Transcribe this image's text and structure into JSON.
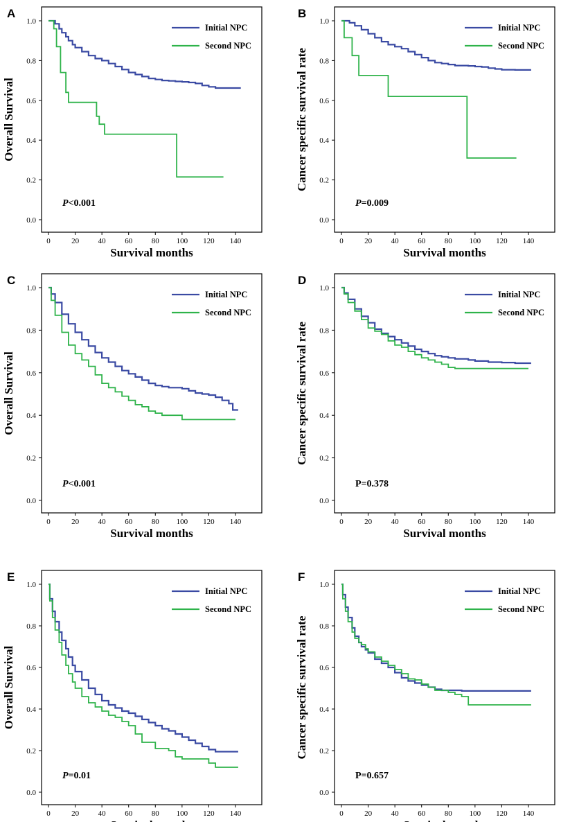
{
  "colors": {
    "initial": "#3a4aa3",
    "second": "#2eb34a",
    "axis": "#000000"
  },
  "chart_data": [
    {
      "panel": "A",
      "type": "line",
      "xlabel": "Survival months",
      "ylabel": "Overall Survival",
      "xlim": [
        0,
        140
      ],
      "ylim": [
        0,
        1
      ],
      "xticks": [
        "0",
        "20",
        "40",
        "60",
        "80",
        "100",
        "120",
        "140"
      ],
      "yticks": [
        "0.0",
        "0.2",
        "0.4",
        "0.6",
        "0.8",
        "1.0"
      ],
      "p_prefix": "P",
      "p_suffix": "<0.001",
      "p_italic": true,
      "series": [
        {
          "name": "Initial NPC",
          "color": "#3a4aa3",
          "step": true,
          "x": [
            0,
            3,
            5,
            8,
            10,
            13,
            15,
            18,
            20,
            25,
            30,
            35,
            40,
            45,
            50,
            55,
            60,
            65,
            70,
            75,
            80,
            85,
            90,
            95,
            100,
            105,
            110,
            115,
            120,
            125,
            130,
            135,
            140,
            144
          ],
          "y": [
            1.0,
            1.0,
            0.985,
            0.96,
            0.94,
            0.92,
            0.9,
            0.88,
            0.865,
            0.845,
            0.825,
            0.81,
            0.8,
            0.785,
            0.77,
            0.755,
            0.74,
            0.73,
            0.72,
            0.71,
            0.705,
            0.7,
            0.698,
            0.695,
            0.693,
            0.69,
            0.685,
            0.675,
            0.668,
            0.662,
            0.662,
            0.662,
            0.662,
            0.662
          ]
        },
        {
          "name": "Second NPC",
          "color": "#2eb34a",
          "step": true,
          "x": [
            0,
            4,
            6,
            9,
            13,
            15,
            36,
            38,
            42,
            94,
            96,
            131
          ],
          "y": [
            1.0,
            0.96,
            0.87,
            0.74,
            0.64,
            0.59,
            0.52,
            0.48,
            0.43,
            0.43,
            0.215,
            0.215
          ]
        }
      ]
    },
    {
      "panel": "B",
      "type": "line",
      "xlabel": "Survival months",
      "ylabel": "Cancer specific survival rate",
      "xlim": [
        0,
        140
      ],
      "ylim": [
        0,
        1
      ],
      "xticks": [
        "0",
        "20",
        "40",
        "60",
        "80",
        "100",
        "120",
        "140"
      ],
      "yticks": [
        "0.0",
        "0.2",
        "0.4",
        "0.6",
        "0.8",
        "1.0"
      ],
      "p_prefix": "P",
      "p_suffix": "=0.009",
      "p_italic": true,
      "series": [
        {
          "name": "Initial NPC",
          "color": "#3a4aa3",
          "step": true,
          "x": [
            0,
            3,
            6,
            10,
            15,
            20,
            25,
            30,
            35,
            40,
            45,
            50,
            55,
            60,
            65,
            70,
            75,
            80,
            85,
            90,
            95,
            100,
            105,
            110,
            115,
            120,
            130,
            140,
            142
          ],
          "y": [
            1.0,
            1.0,
            0.99,
            0.975,
            0.955,
            0.935,
            0.915,
            0.895,
            0.88,
            0.87,
            0.86,
            0.845,
            0.83,
            0.815,
            0.8,
            0.79,
            0.785,
            0.78,
            0.775,
            0.775,
            0.773,
            0.77,
            0.768,
            0.762,
            0.758,
            0.754,
            0.753,
            0.753,
            0.753
          ]
        },
        {
          "name": "Second NPC",
          "color": "#2eb34a",
          "step": true,
          "x": [
            0,
            2,
            8,
            13,
            35,
            94,
            131
          ],
          "y": [
            1.0,
            0.915,
            0.825,
            0.725,
            0.62,
            0.31,
            0.31
          ]
        }
      ]
    },
    {
      "panel": "C",
      "type": "line",
      "xlabel": "Survival months",
      "ylabel": "Overall Survival",
      "xlim": [
        0,
        140
      ],
      "ylim": [
        0,
        1
      ],
      "xticks": [
        "0",
        "20",
        "40",
        "60",
        "80",
        "100",
        "120",
        "140"
      ],
      "yticks": [
        "0.0",
        "0.2",
        "0.4",
        "0.6",
        "0.8",
        "1.0"
      ],
      "p_prefix": "P",
      "p_suffix": "<0.001",
      "p_italic": true,
      "series": [
        {
          "name": "Initial NPC",
          "color": "#3a4aa3",
          "step": true,
          "x": [
            0,
            2,
            5,
            10,
            15,
            20,
            25,
            30,
            35,
            40,
            45,
            50,
            55,
            60,
            65,
            70,
            75,
            80,
            85,
            90,
            95,
            100,
            105,
            110,
            115,
            120,
            125,
            130,
            135,
            138,
            142
          ],
          "y": [
            1.0,
            0.97,
            0.93,
            0.875,
            0.83,
            0.79,
            0.755,
            0.725,
            0.695,
            0.67,
            0.65,
            0.63,
            0.61,
            0.595,
            0.58,
            0.565,
            0.55,
            0.54,
            0.535,
            0.53,
            0.53,
            0.525,
            0.515,
            0.505,
            0.5,
            0.495,
            0.485,
            0.47,
            0.455,
            0.425,
            0.425
          ]
        },
        {
          "name": "Second NPC",
          "color": "#2eb34a",
          "step": true,
          "x": [
            0,
            2,
            5,
            10,
            15,
            20,
            25,
            30,
            35,
            40,
            45,
            50,
            55,
            60,
            65,
            70,
            75,
            80,
            85,
            90,
            95,
            100,
            105,
            110,
            115,
            120,
            125,
            130,
            135,
            140
          ],
          "y": [
            1.0,
            0.94,
            0.87,
            0.79,
            0.73,
            0.69,
            0.66,
            0.63,
            0.59,
            0.55,
            0.53,
            0.51,
            0.49,
            0.47,
            0.45,
            0.44,
            0.42,
            0.41,
            0.4,
            0.4,
            0.4,
            0.38,
            0.38,
            0.38,
            0.38,
            0.38,
            0.38,
            0.38,
            0.38,
            0.38
          ]
        }
      ]
    },
    {
      "panel": "D",
      "type": "line",
      "xlabel": "Survival months",
      "ylabel": "Cancer specific survival rate",
      "xlim": [
        0,
        140
      ],
      "ylim": [
        0,
        1
      ],
      "xticks": [
        "0",
        "20",
        "40",
        "60",
        "80",
        "100",
        "120",
        "140"
      ],
      "yticks": [
        "0.0",
        "0.2",
        "0.4",
        "0.6",
        "0.8",
        "1.0"
      ],
      "p_prefix": "",
      "p_suffix": "P=0.378",
      "p_italic": false,
      "series": [
        {
          "name": "Initial NPC",
          "color": "#3a4aa3",
          "step": true,
          "x": [
            0,
            2,
            5,
            10,
            15,
            20,
            25,
            30,
            35,
            40,
            45,
            50,
            55,
            60,
            65,
            70,
            75,
            80,
            85,
            90,
            95,
            100,
            110,
            120,
            130,
            140,
            142
          ],
          "y": [
            1.0,
            0.975,
            0.945,
            0.9,
            0.865,
            0.835,
            0.805,
            0.785,
            0.77,
            0.755,
            0.74,
            0.725,
            0.71,
            0.7,
            0.69,
            0.68,
            0.675,
            0.67,
            0.665,
            0.665,
            0.66,
            0.655,
            0.65,
            0.648,
            0.645,
            0.645,
            0.645
          ]
        },
        {
          "name": "Second NPC",
          "color": "#2eb34a",
          "step": true,
          "x": [
            0,
            2,
            5,
            10,
            15,
            20,
            25,
            30,
            35,
            40,
            45,
            50,
            55,
            60,
            65,
            70,
            75,
            80,
            85,
            90,
            100,
            110,
            120,
            130,
            140
          ],
          "y": [
            1.0,
            0.97,
            0.93,
            0.89,
            0.85,
            0.81,
            0.795,
            0.78,
            0.75,
            0.73,
            0.72,
            0.7,
            0.685,
            0.67,
            0.66,
            0.65,
            0.64,
            0.625,
            0.62,
            0.62,
            0.62,
            0.62,
            0.62,
            0.62,
            0.62
          ]
        }
      ]
    },
    {
      "panel": "E",
      "type": "line",
      "xlabel": "Survival months",
      "ylabel": "Overall Survival",
      "xlim": [
        0,
        140
      ],
      "ylim": [
        0,
        1
      ],
      "xticks": [
        "0",
        "20",
        "40",
        "60",
        "80",
        "100",
        "120",
        "140"
      ],
      "yticks": [
        "0.0",
        "0.2",
        "0.4",
        "0.6",
        "0.8",
        "1.0"
      ],
      "p_prefix": "P",
      "p_suffix": "=0.01",
      "p_italic": true,
      "series": [
        {
          "name": "Initial NPC",
          "color": "#3a4aa3",
          "step": true,
          "x": [
            0,
            1,
            3,
            5,
            8,
            10,
            13,
            15,
            18,
            20,
            25,
            30,
            35,
            40,
            45,
            50,
            55,
            60,
            65,
            70,
            75,
            80,
            85,
            90,
            95,
            100,
            105,
            110,
            115,
            120,
            125,
            130,
            135,
            142
          ],
          "y": [
            1.0,
            0.93,
            0.87,
            0.82,
            0.77,
            0.73,
            0.69,
            0.65,
            0.61,
            0.58,
            0.54,
            0.5,
            0.47,
            0.44,
            0.42,
            0.405,
            0.39,
            0.38,
            0.365,
            0.35,
            0.335,
            0.32,
            0.305,
            0.295,
            0.28,
            0.265,
            0.25,
            0.235,
            0.22,
            0.205,
            0.195,
            0.195,
            0.195,
            0.195
          ]
        },
        {
          "name": "Second NPC",
          "color": "#2eb34a",
          "step": true,
          "x": [
            0,
            1,
            3,
            5,
            8,
            10,
            13,
            15,
            18,
            20,
            25,
            30,
            35,
            40,
            45,
            50,
            55,
            60,
            65,
            70,
            80,
            90,
            95,
            100,
            110,
            120,
            125,
            130,
            142
          ],
          "y": [
            1.0,
            0.92,
            0.84,
            0.78,
            0.72,
            0.66,
            0.61,
            0.57,
            0.53,
            0.5,
            0.46,
            0.43,
            0.41,
            0.39,
            0.37,
            0.36,
            0.34,
            0.32,
            0.28,
            0.24,
            0.21,
            0.2,
            0.17,
            0.16,
            0.16,
            0.14,
            0.12,
            0.12,
            0.12
          ]
        }
      ]
    },
    {
      "panel": "F",
      "type": "line",
      "xlabel": "Survival months",
      "ylabel": "Cancer specific survival rate",
      "xlim": [
        0,
        140
      ],
      "ylim": [
        0,
        1
      ],
      "xticks": [
        "0",
        "20",
        "40",
        "60",
        "80",
        "100",
        "120",
        "140"
      ],
      "yticks": [
        "0.0",
        "0.2",
        "0.4",
        "0.6",
        "0.8",
        "1.0"
      ],
      "p_prefix": "",
      "p_suffix": "P=0.657",
      "p_italic": false,
      "series": [
        {
          "name": "Initial NPC",
          "color": "#3a4aa3",
          "step": true,
          "x": [
            0,
            1,
            3,
            5,
            8,
            10,
            13,
            15,
            18,
            20,
            25,
            30,
            35,
            40,
            45,
            50,
            55,
            60,
            65,
            70,
            75,
            80,
            90,
            100,
            110,
            120,
            130,
            142
          ],
          "y": [
            1.0,
            0.95,
            0.89,
            0.84,
            0.79,
            0.75,
            0.72,
            0.7,
            0.685,
            0.67,
            0.64,
            0.62,
            0.6,
            0.575,
            0.55,
            0.535,
            0.525,
            0.515,
            0.505,
            0.495,
            0.49,
            0.49,
            0.487,
            0.487,
            0.487,
            0.487,
            0.487,
            0.487
          ]
        },
        {
          "name": "Second NPC",
          "color": "#2eb34a",
          "step": true,
          "x": [
            0,
            1,
            3,
            5,
            8,
            10,
            13,
            15,
            18,
            20,
            25,
            30,
            35,
            40,
            45,
            50,
            55,
            60,
            65,
            70,
            75,
            80,
            85,
            90,
            95,
            100,
            110,
            120,
            130,
            142
          ],
          "y": [
            1.0,
            0.93,
            0.87,
            0.82,
            0.77,
            0.74,
            0.72,
            0.71,
            0.69,
            0.675,
            0.65,
            0.63,
            0.61,
            0.59,
            0.57,
            0.545,
            0.54,
            0.52,
            0.505,
            0.49,
            0.49,
            0.48,
            0.47,
            0.46,
            0.42,
            0.42,
            0.42,
            0.42,
            0.42,
            0.42
          ]
        }
      ]
    }
  ]
}
